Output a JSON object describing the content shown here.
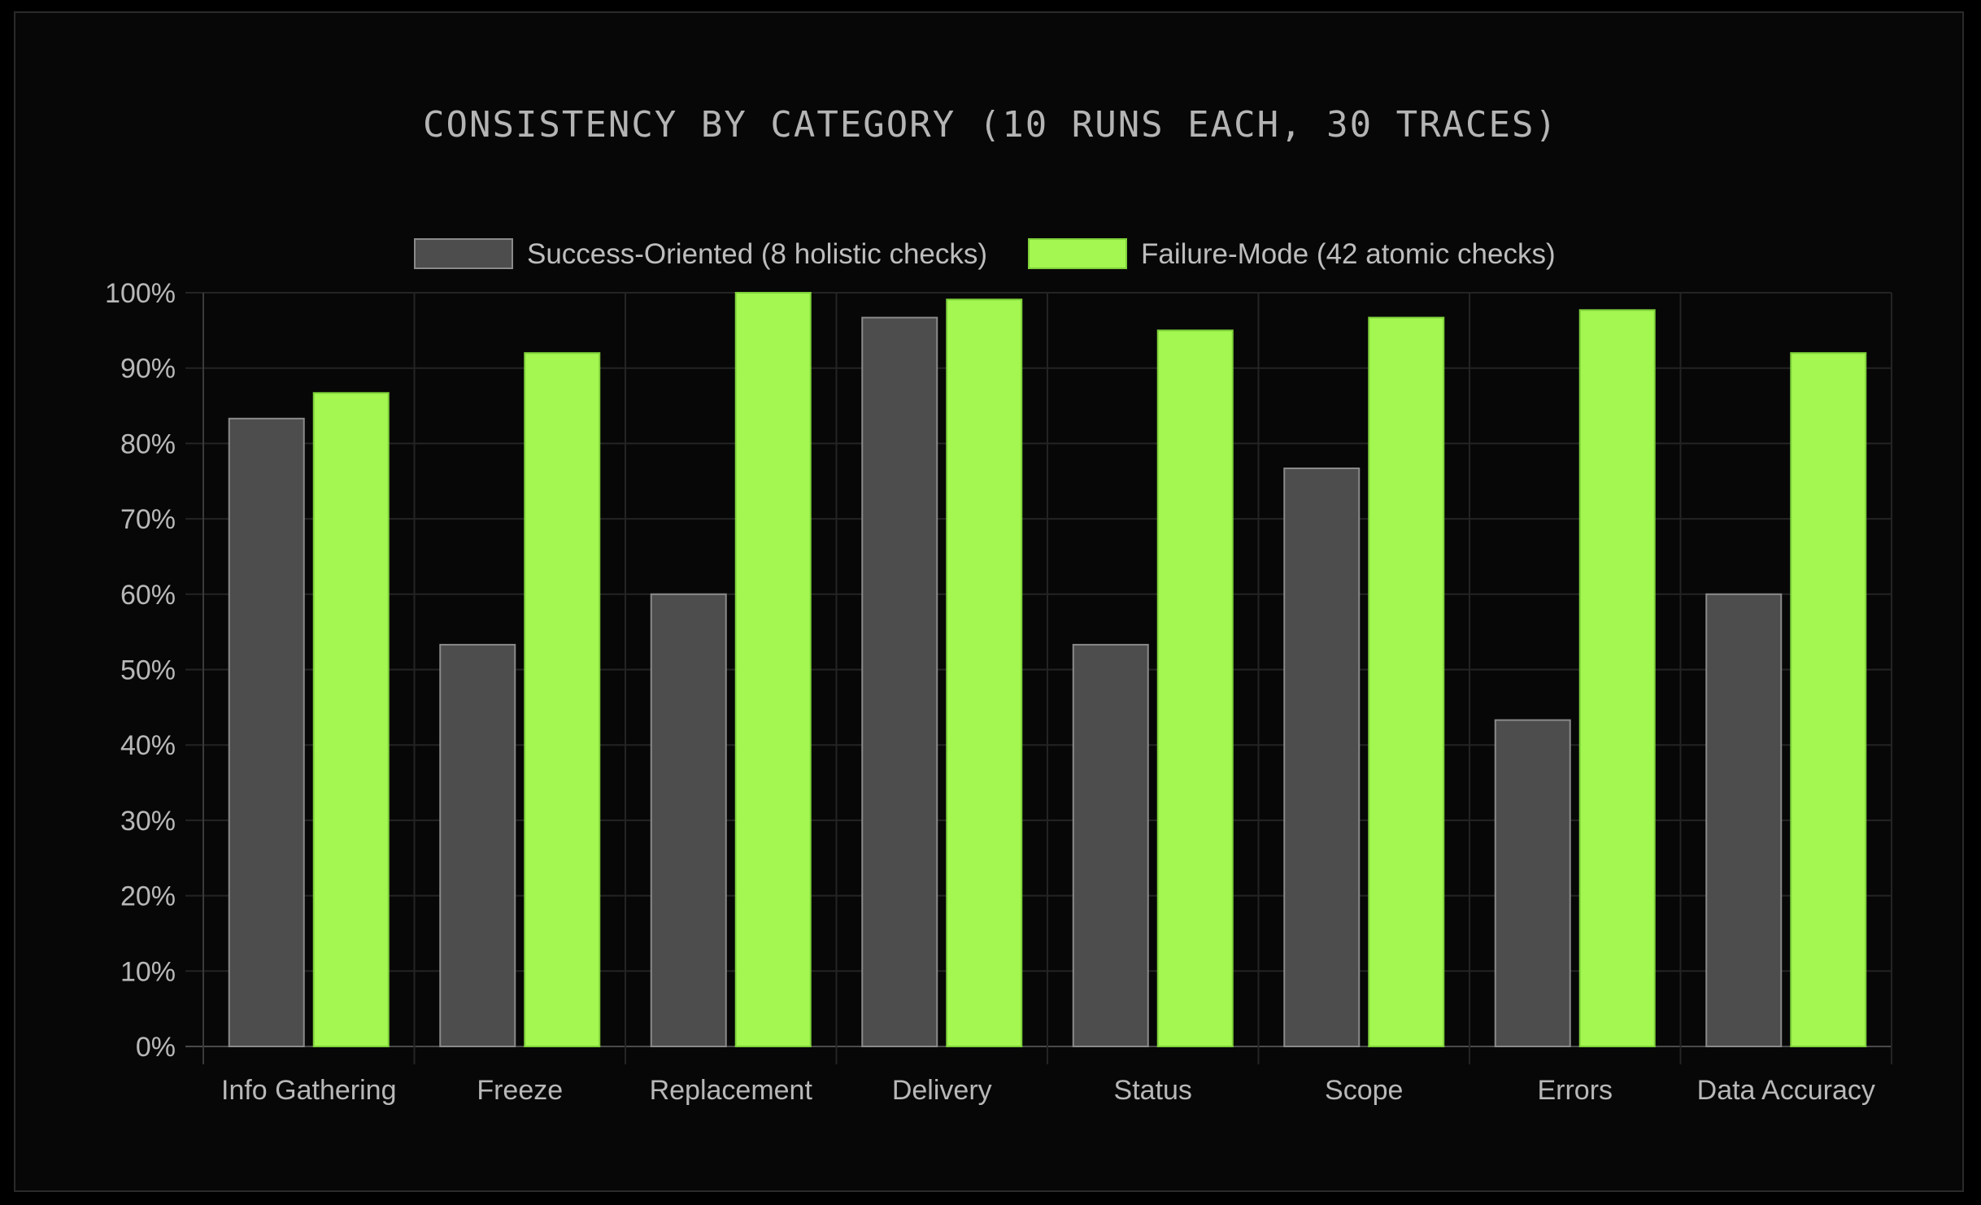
{
  "chart_data": {
    "type": "bar",
    "title": "CONSISTENCY BY CATEGORY (10 RUNS EACH, 30 TRACES)",
    "xlabel": "",
    "ylabel": "",
    "ylim": [
      0,
      100
    ],
    "yticks": [
      "0%",
      "10%",
      "20%",
      "30%",
      "40%",
      "50%",
      "60%",
      "70%",
      "80%",
      "90%",
      "100%"
    ],
    "grid": true,
    "legend_position": "top-center",
    "categories": [
      "Info Gathering",
      "Freeze",
      "Replacement",
      "Delivery",
      "Status",
      "Scope",
      "Errors",
      "Data Accuracy"
    ],
    "series": [
      {
        "name": "Success-Oriented (8 holistic checks)",
        "color": "#4d4d4d",
        "values": [
          83.3,
          53.3,
          60.0,
          96.7,
          53.3,
          76.7,
          43.3,
          60.0
        ]
      },
      {
        "name": "Failure-Mode (42 atomic checks)",
        "color": "#a3f750",
        "values": [
          86.7,
          92.0,
          100.0,
          99.1,
          95.0,
          96.7,
          97.7,
          92.0
        ]
      }
    ]
  }
}
